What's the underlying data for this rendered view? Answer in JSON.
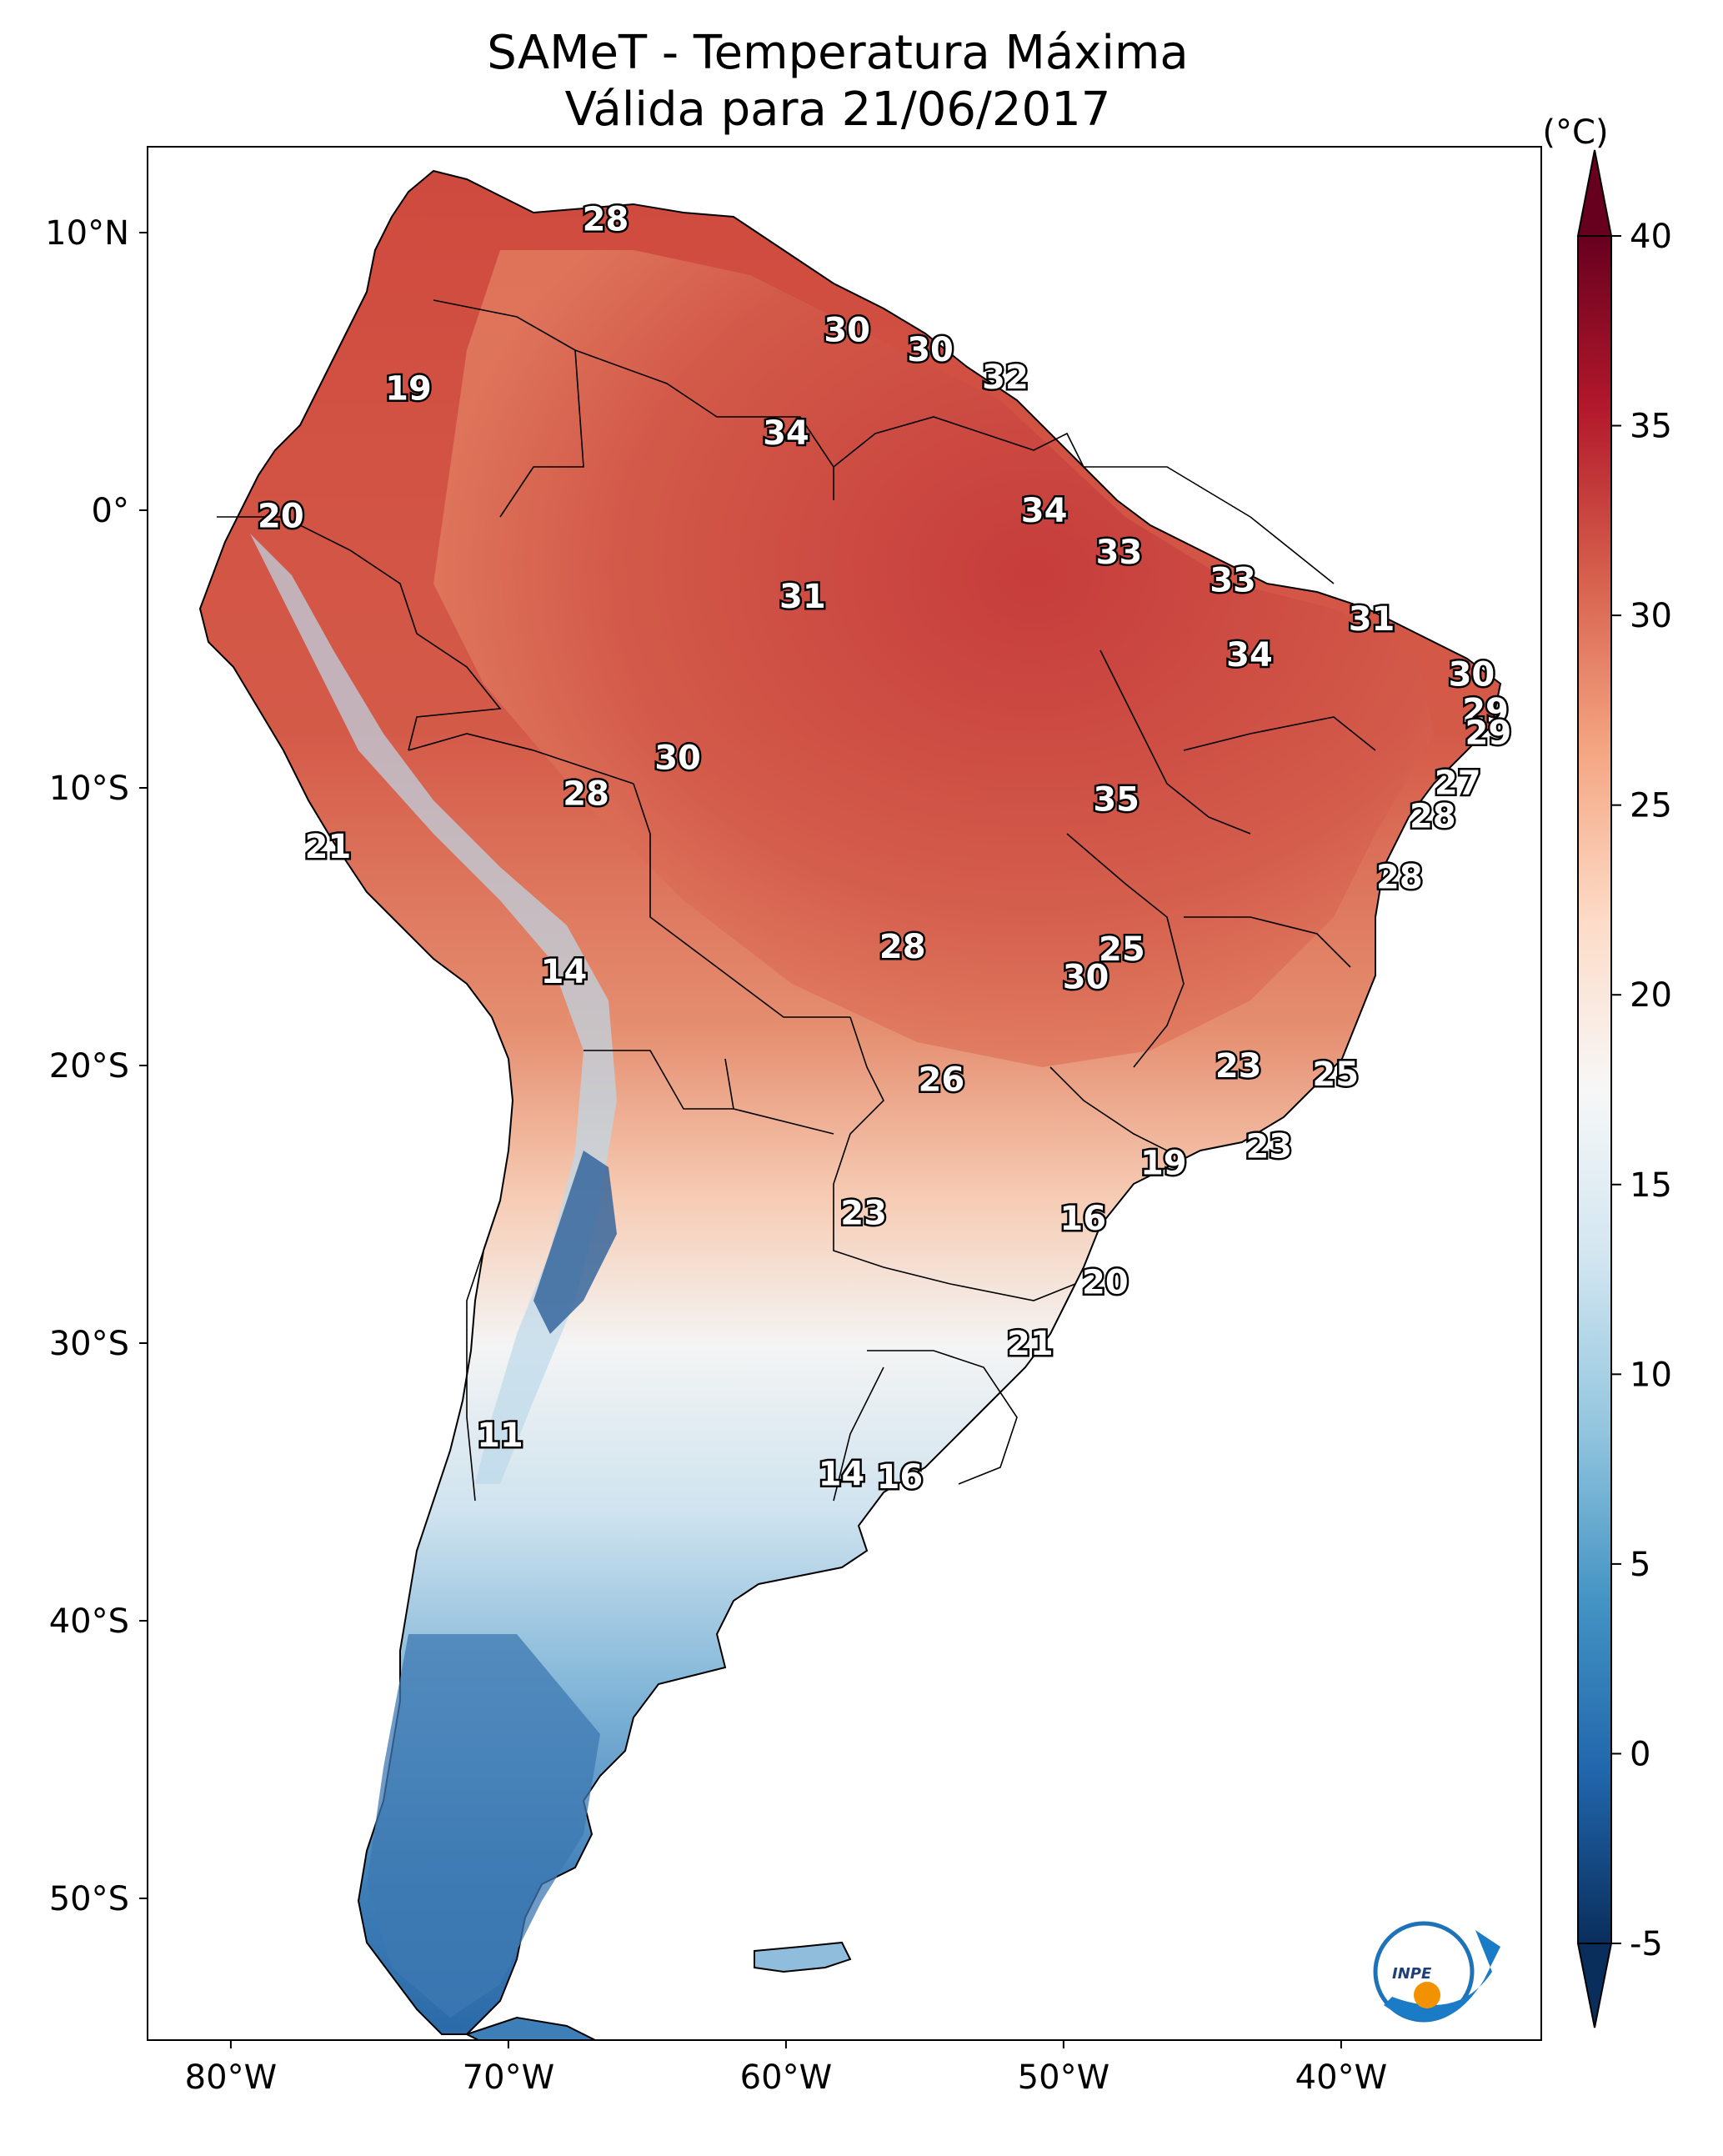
{
  "title": {
    "line1": "SAMeT - Temperatura Máxima",
    "line2": "Válida para 21/06/2017"
  },
  "axes": {
    "lat_ticks": [
      "10°N",
      "0°",
      "10°S",
      "20°S",
      "30°S",
      "40°S",
      "50°S"
    ],
    "lon_ticks": [
      "80°W",
      "70°W",
      "60°W",
      "50°W",
      "40°W"
    ]
  },
  "colorbar": {
    "unit": "(°C)",
    "ticks": [
      "40",
      "35",
      "30",
      "25",
      "20",
      "15",
      "10",
      "5",
      "0",
      "-5"
    ],
    "colors": [
      "#0a2e5c",
      "#2166ac",
      "#4393c3",
      "#92c5de",
      "#d1e5f0",
      "#f7f7f7",
      "#fddbc7",
      "#f4a582",
      "#d6604d",
      "#b2182b",
      "#67001f"
    ]
  },
  "contour_labels": [
    {
      "text": "28",
      "lon": -66.5,
      "lat": 10.5
    },
    {
      "text": "30",
      "lon": -57.8,
      "lat": 6.5
    },
    {
      "text": "30",
      "lon": -54.8,
      "lat": 5.8
    },
    {
      "text": "32",
      "lon": -52.1,
      "lat": 4.8
    },
    {
      "text": "19",
      "lon": -73.6,
      "lat": 4.4
    },
    {
      "text": "34",
      "lon": -60.0,
      "lat": 2.8
    },
    {
      "text": "20",
      "lon": -78.2,
      "lat": -0.2
    },
    {
      "text": "34",
      "lon": -50.7,
      "lat": 0.0
    },
    {
      "text": "33",
      "lon": -48.0,
      "lat": -1.5
    },
    {
      "text": "31",
      "lon": -59.4,
      "lat": -3.1
    },
    {
      "text": "33",
      "lon": -43.9,
      "lat": -2.5
    },
    {
      "text": "31",
      "lon": -38.9,
      "lat": -3.9
    },
    {
      "text": "34",
      "lon": -43.3,
      "lat": -5.2
    },
    {
      "text": "30",
      "lon": -35.3,
      "lat": -5.9
    },
    {
      "text": "29",
      "lon": -34.8,
      "lat": -7.2
    },
    {
      "text": "29",
      "lon": -34.7,
      "lat": -8.0
    },
    {
      "text": "30",
      "lon": -63.9,
      "lat": -8.9
    },
    {
      "text": "28",
      "lon": -67.2,
      "lat": -10.2
    },
    {
      "text": "27",
      "lon": -35.8,
      "lat": -9.8
    },
    {
      "text": "35",
      "lon": -48.1,
      "lat": -10.4
    },
    {
      "text": "28",
      "lon": -36.7,
      "lat": -11.0
    },
    {
      "text": "21",
      "lon": -76.5,
      "lat": -12.1
    },
    {
      "text": "28",
      "lon": -37.9,
      "lat": -13.2
    },
    {
      "text": "14",
      "lon": -68.0,
      "lat": -16.6
    },
    {
      "text": "28",
      "lon": -55.8,
      "lat": -15.7
    },
    {
      "text": "25",
      "lon": -47.9,
      "lat": -15.8
    },
    {
      "text": "30",
      "lon": -49.2,
      "lat": -16.8
    },
    {
      "text": "23",
      "lon": -43.7,
      "lat": -20.0
    },
    {
      "text": "25",
      "lon": -40.2,
      "lat": -20.3
    },
    {
      "text": "26",
      "lon": -54.4,
      "lat": -20.5
    },
    {
      "text": "23",
      "lon": -42.6,
      "lat": -22.9
    },
    {
      "text": "19",
      "lon": -46.4,
      "lat": -23.5
    },
    {
      "text": "23",
      "lon": -57.2,
      "lat": -25.3
    },
    {
      "text": "16",
      "lon": -49.3,
      "lat": -25.5
    },
    {
      "text": "20",
      "lon": -48.5,
      "lat": -27.8
    },
    {
      "text": "21",
      "lon": -51.2,
      "lat": -30.0
    },
    {
      "text": "11",
      "lon": -70.3,
      "lat": -33.3
    },
    {
      "text": "14",
      "lon": -58.0,
      "lat": -34.7
    },
    {
      "text": "16",
      "lon": -55.9,
      "lat": -34.8
    }
  ]
}
